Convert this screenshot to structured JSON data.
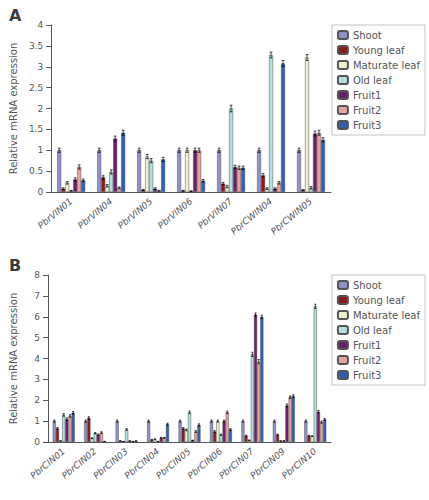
{
  "chart_data": [
    {
      "type": "bar",
      "title": "A",
      "ylabel": "Relative mRNA expression",
      "categories": [
        "PbrVIN01",
        "PbrVIN04",
        "PbrVIN05",
        "PbrVIN06",
        "PbrVIN07",
        "PbrCWIN04",
        "PbrCWIN05"
      ],
      "series": [
        {
          "name": "Shoot",
          "color": "#9090cc",
          "values": [
            1.0,
            1.0,
            1.0,
            1.0,
            1.0,
            1.0,
            1.0
          ],
          "errors": [
            0.05,
            0.05,
            0.05,
            0.05,
            0.05,
            0.05,
            0.05
          ]
        },
        {
          "name": "Young leaf",
          "color": "#8b1a1a",
          "values": [
            0.08,
            0.35,
            0.05,
            0.03,
            0.2,
            0.4,
            0.05
          ],
          "errors": [
            0.02,
            0.04,
            0.01,
            0.01,
            0.03,
            0.04,
            0.01
          ]
        },
        {
          "name": "Maturate leaf",
          "color": "#f0f0d0",
          "values": [
            0.22,
            0.15,
            0.85,
            1.0,
            0.13,
            0.08,
            3.22
          ],
          "errors": [
            0.03,
            0.03,
            0.05,
            0.05,
            0.03,
            0.02,
            0.07
          ]
        },
        {
          "name": "Old leaf",
          "color": "#b0e0e0",
          "values": [
            0.03,
            0.48,
            0.75,
            0.02,
            2.0,
            3.28,
            0.1
          ],
          "errors": [
            0.01,
            0.05,
            0.05,
            0.01,
            0.08,
            0.07,
            0.03
          ]
        },
        {
          "name": "Fruit1",
          "color": "#6b1e6b",
          "values": [
            0.3,
            1.28,
            0.08,
            1.0,
            0.6,
            0.08,
            1.4
          ],
          "errors": [
            0.04,
            0.06,
            0.02,
            0.05,
            0.04,
            0.02,
            0.06
          ]
        },
        {
          "name": "Fruit2",
          "color": "#e8a0a0",
          "values": [
            0.6,
            0.1,
            0.03,
            1.0,
            0.58,
            0.22,
            1.42
          ],
          "errors": [
            0.05,
            0.02,
            0.01,
            0.05,
            0.04,
            0.03,
            0.06
          ]
        },
        {
          "name": "Fruit3",
          "color": "#3060b0",
          "values": [
            0.28,
            1.42,
            0.78,
            0.27,
            0.58,
            3.08,
            1.25
          ],
          "errors": [
            0.03,
            0.06,
            0.05,
            0.03,
            0.04,
            0.07,
            0.05
          ]
        }
      ],
      "ylim": [
        0,
        4.0
      ],
      "yticks": [
        0,
        0.5,
        1,
        1.5,
        2,
        2.5,
        3,
        3.5,
        4
      ],
      "grid": false,
      "legend": "right"
    },
    {
      "type": "bar",
      "title": "B",
      "ylabel": "Relative mRNA expression",
      "categories": [
        "PbrCIN01",
        "PbrCIN02",
        "PbrCIN03",
        "PbrCIN04",
        "PbrCIN05",
        "PbrCIN06",
        "PbrCIN07",
        "PbrCIN09",
        "PbrCIN10"
      ],
      "series": [
        {
          "name": "Shoot",
          "color": "#9090cc",
          "values": [
            1.0,
            1.0,
            1.0,
            1.0,
            1.0,
            1.0,
            1.0,
            1.0,
            1.0
          ],
          "errors": [
            0.05,
            0.05,
            0.05,
            0.05,
            0.05,
            0.05,
            0.05,
            0.05,
            0.05
          ]
        },
        {
          "name": "Young leaf",
          "color": "#8b1a1a",
          "values": [
            0.65,
            1.15,
            0.05,
            0.1,
            0.65,
            0.5,
            0.3,
            0.35,
            0.3
          ],
          "errors": [
            0.04,
            0.06,
            0.01,
            0.02,
            0.04,
            0.04,
            0.03,
            0.03,
            0.02
          ]
        },
        {
          "name": "Maturate leaf",
          "color": "#f0f0d0",
          "values": [
            0.05,
            0.18,
            0.02,
            0.13,
            0.58,
            1.0,
            0.08,
            0.05,
            0.28
          ],
          "errors": [
            0.01,
            0.02,
            0.01,
            0.02,
            0.04,
            0.05,
            0.02,
            0.01,
            0.02
          ]
        },
        {
          "name": "Old leaf",
          "color": "#b0e0e0",
          "values": [
            1.3,
            0.42,
            0.6,
            0.02,
            1.42,
            0.35,
            4.2,
            0.05,
            6.5
          ],
          "errors": [
            0.06,
            0.03,
            0.04,
            0.01,
            0.06,
            0.03,
            0.1,
            0.02,
            0.1
          ]
        },
        {
          "name": "Fruit1",
          "color": "#6b1e6b",
          "values": [
            1.1,
            0.35,
            0.05,
            0.2,
            0.08,
            1.0,
            6.1,
            1.75,
            1.45
          ],
          "errors": [
            0.06,
            0.03,
            0.01,
            0.02,
            0.01,
            0.05,
            0.08,
            0.07,
            0.06
          ]
        },
        {
          "name": "Fruit2",
          "color": "#e8a0a0",
          "values": [
            1.25,
            0.45,
            0.02,
            0.2,
            0.5,
            1.42,
            3.85,
            2.15,
            0.95
          ],
          "errors": [
            0.06,
            0.04,
            0.01,
            0.02,
            0.04,
            0.06,
            0.1,
            0.06,
            0.05
          ]
        },
        {
          "name": "Fruit3",
          "color": "#3060b0",
          "values": [
            1.4,
            0.02,
            0.05,
            0.85,
            0.82,
            0.6,
            6.0,
            2.2,
            1.08
          ],
          "errors": [
            0.06,
            0.01,
            0.01,
            0.05,
            0.05,
            0.04,
            0.08,
            0.06,
            0.05
          ]
        }
      ],
      "ylim": [
        0,
        8.0
      ],
      "yticks": [
        0,
        1,
        2,
        3,
        4,
        5,
        6,
        7,
        8
      ],
      "grid": false,
      "legend": "right"
    }
  ]
}
